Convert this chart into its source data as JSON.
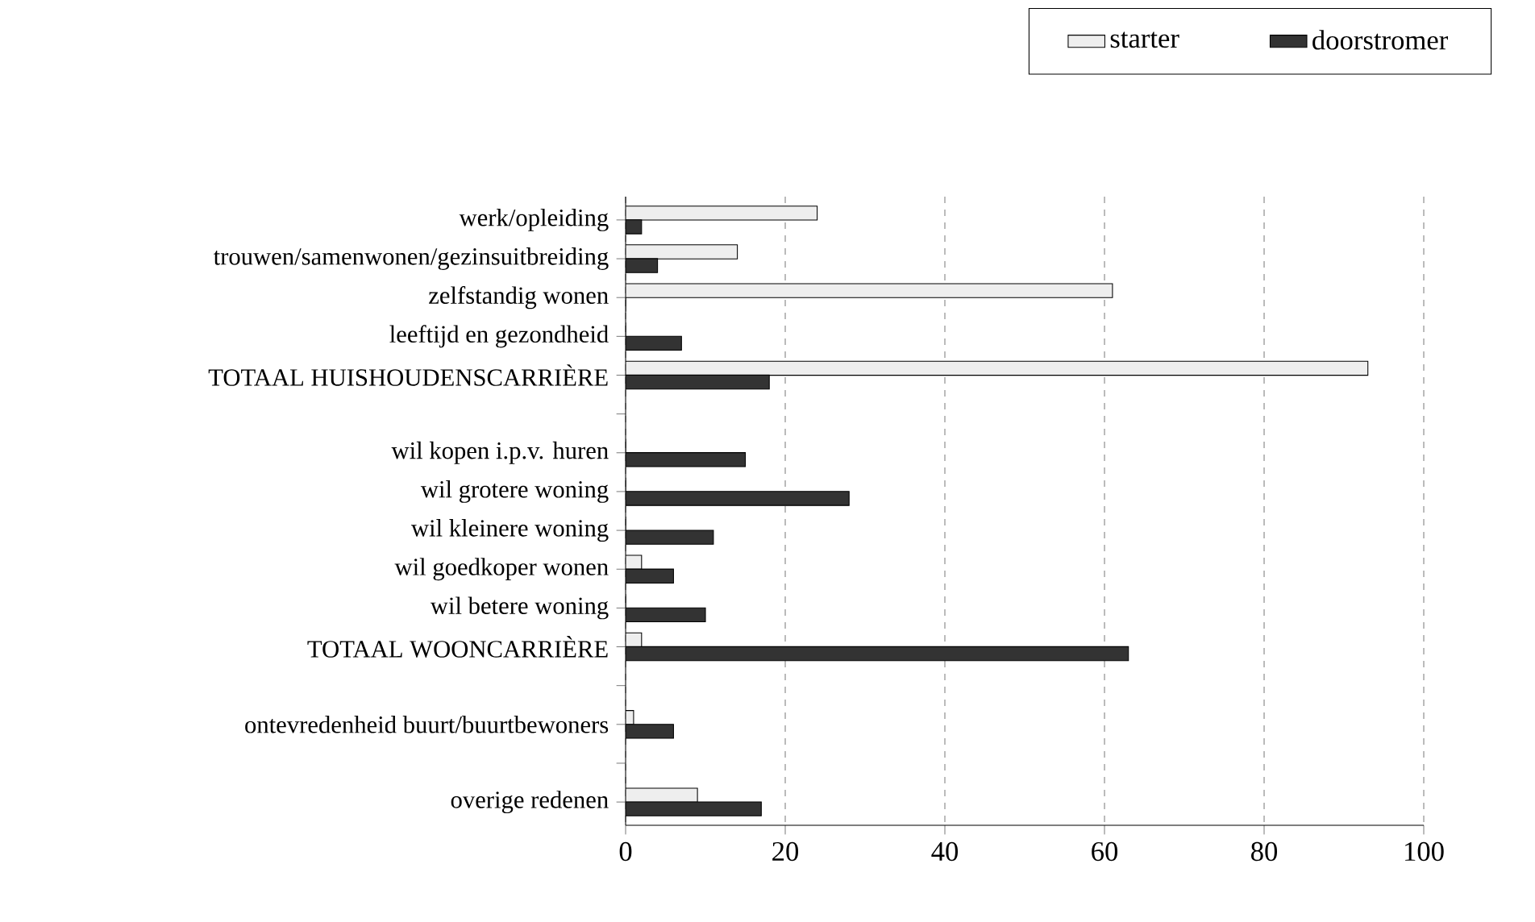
{
  "chart_data": {
    "type": "bar",
    "orientation": "horizontal",
    "categories": [
      "werk/opleiding",
      "trouwen/samenwonen/gezinsuitbreiding",
      "zelfstandig wonen",
      "leeftijd en gezondheid",
      "TOTAAL HUISHOUDENSCARRIÈRE",
      null,
      "wil kopen i.p.v. huren",
      "wil grotere woning",
      "wil kleinere woning",
      "wil goedkoper wonen",
      "wil betere woning",
      "TOTAAL WOONCARRIÈRE",
      null,
      "ontevredenheid buurt/buurtbewoners",
      null,
      "overige redenen"
    ],
    "series": [
      {
        "name": "starter",
        "color": "#eeeeee",
        "values": [
          24,
          14,
          61,
          0,
          93,
          null,
          0,
          0,
          0,
          2,
          0,
          2,
          null,
          1,
          null,
          9
        ]
      },
      {
        "name": "doorstromer",
        "color": "#333333",
        "values": [
          2,
          4,
          0,
          7,
          18,
          null,
          15,
          28,
          11,
          6,
          10,
          63,
          null,
          6,
          null,
          17
        ]
      }
    ],
    "xlim": [
      0,
      100
    ],
    "xticks": [
      0,
      20,
      40,
      60,
      80,
      100
    ],
    "grid": "x",
    "legend": "top right"
  }
}
